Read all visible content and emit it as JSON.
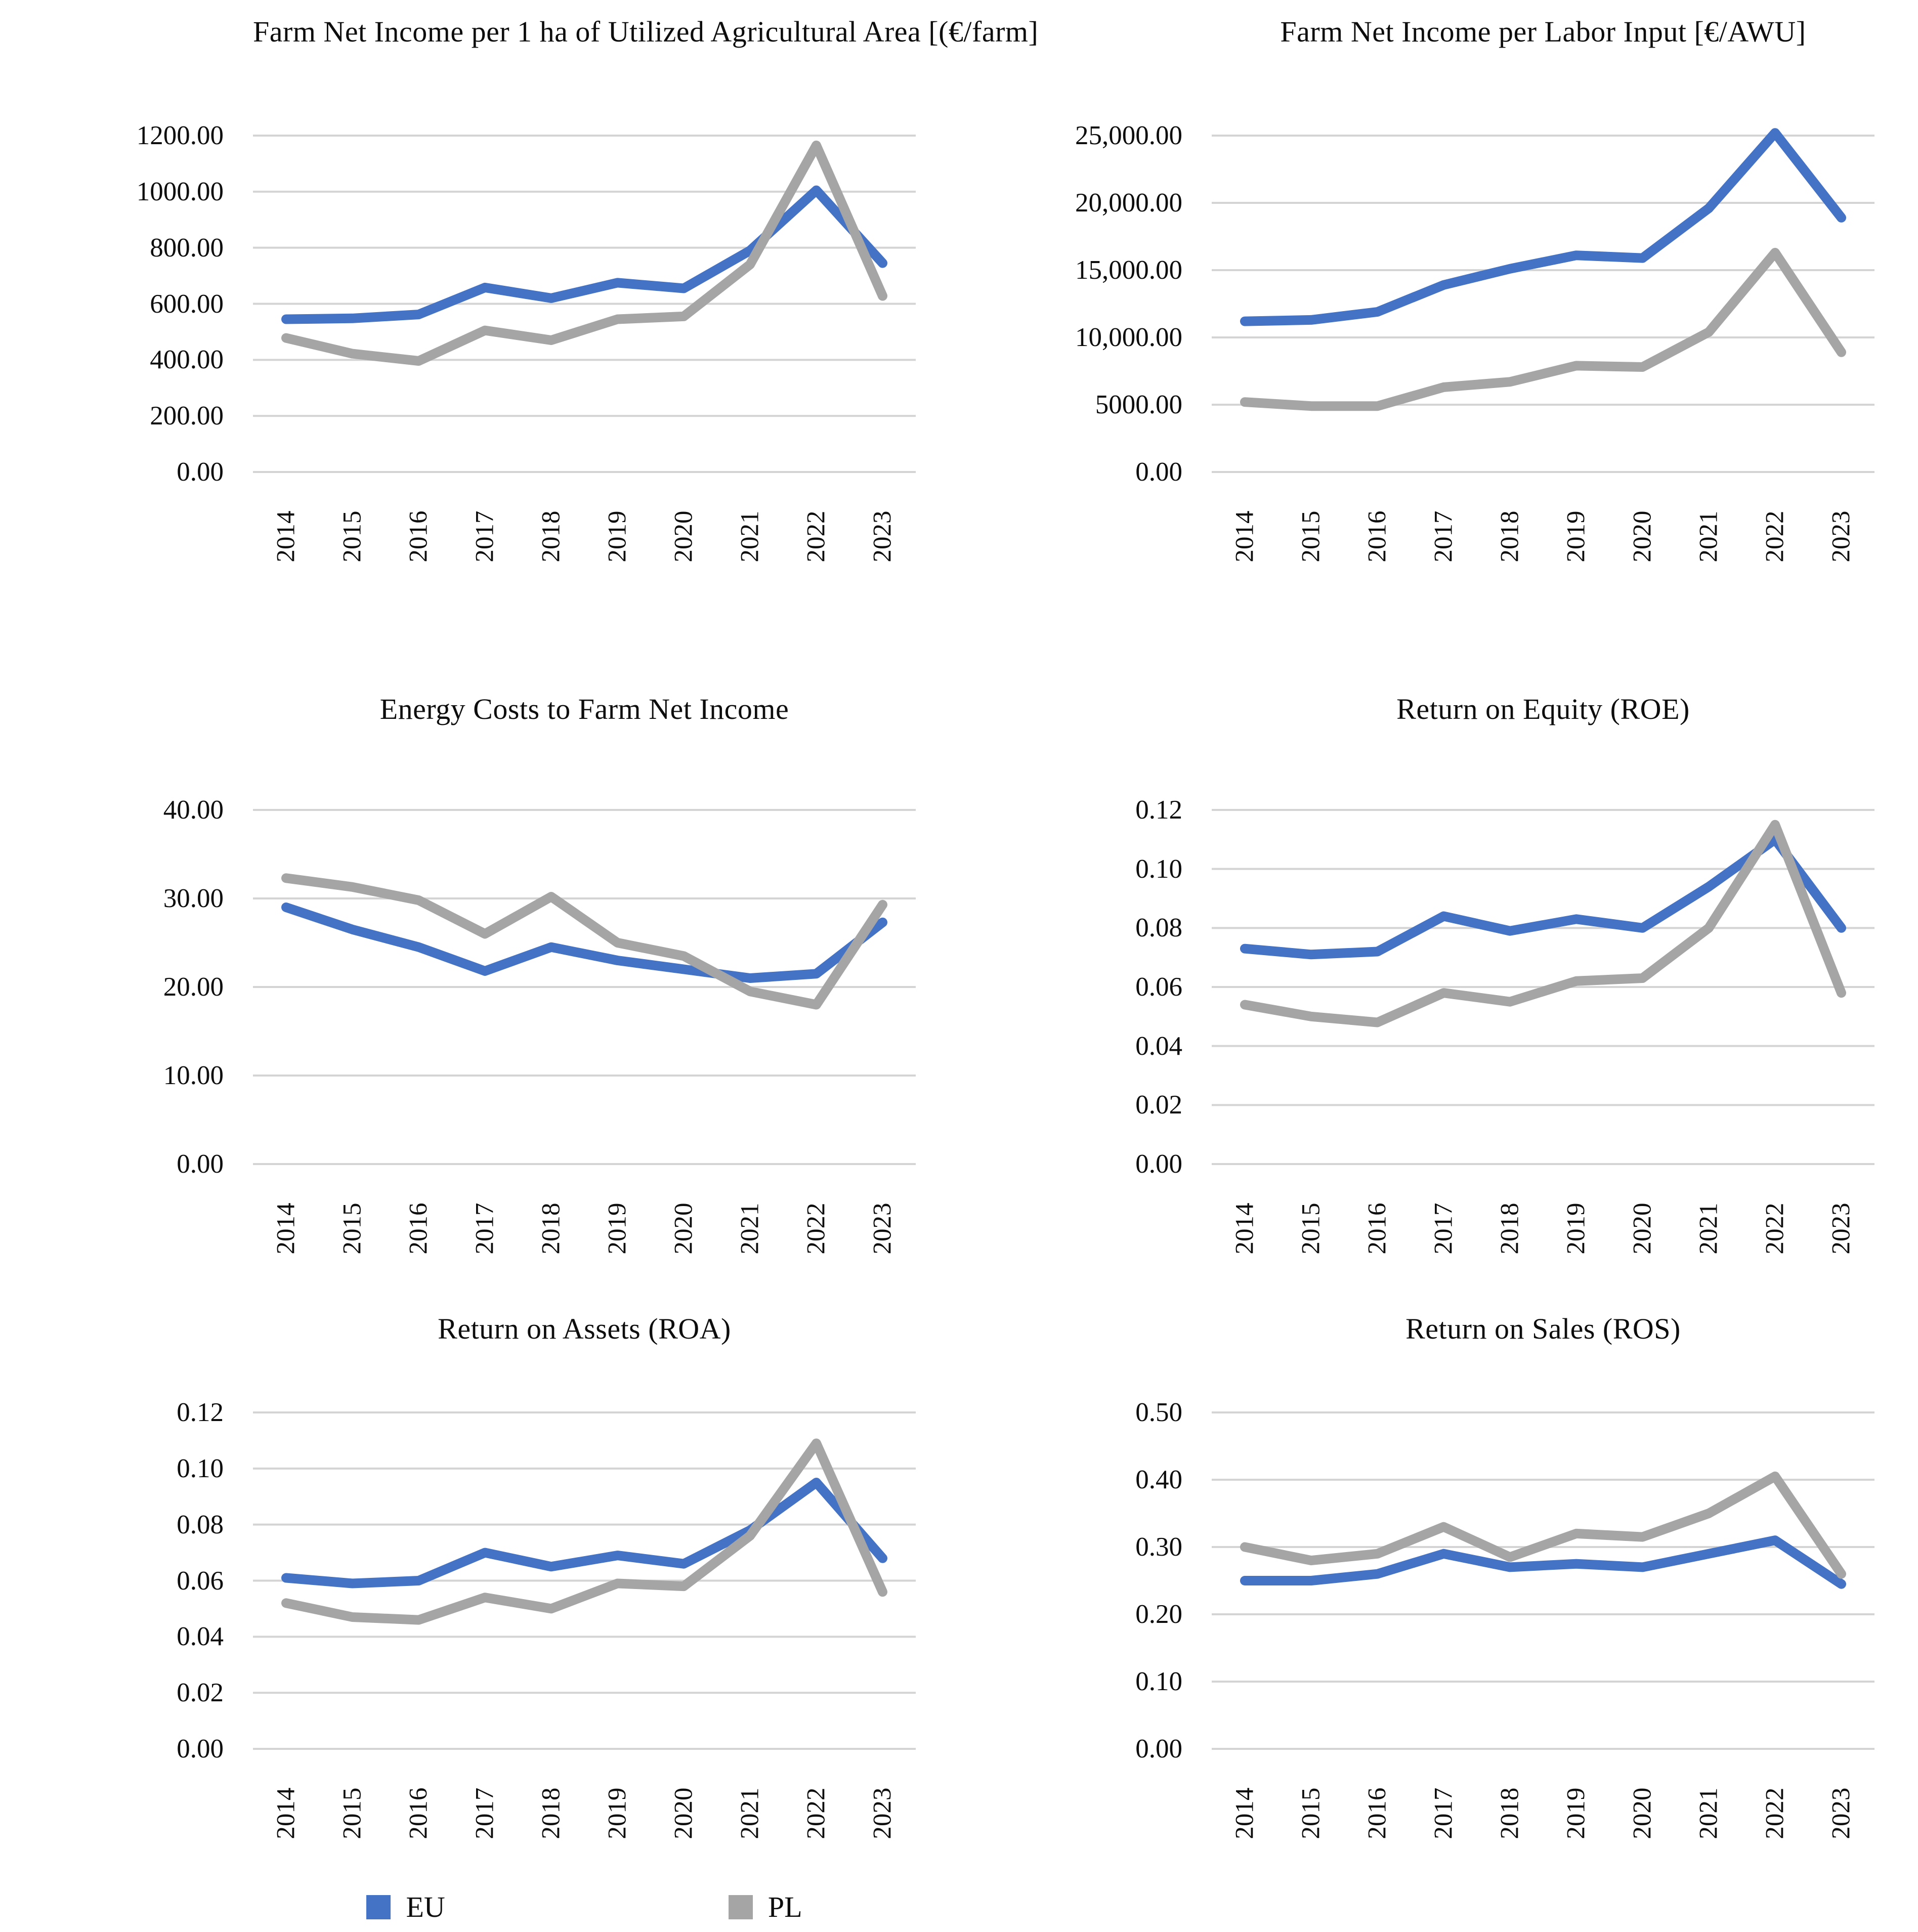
{
  "figure": {
    "background": "#ffffff",
    "text_color": "#0d0d0d",
    "gridline_color": "#d4d4d4",
    "accent_blue": "#4472C4",
    "accent_gray": "#A5A5A5"
  },
  "legend": {
    "position": "bottom-left",
    "items": [
      {
        "label": "EU",
        "color": "#4472C4"
      },
      {
        "label": "PL",
        "color": "#A5A5A5"
      }
    ]
  },
  "chart_data": [
    {
      "type": "line",
      "title": "Farm Net Income per 1 ha of Utilized Agricultural Area [(€/farm]",
      "categories": [
        "2014",
        "2015",
        "2016",
        "2017",
        "2018",
        "2019",
        "2020",
        "2021",
        "2022",
        "2023"
      ],
      "y_ticks": [
        "1200.00",
        "1000.00",
        "800.00",
        "600.00",
        "400.00",
        "200.00",
        "0.00"
      ],
      "ylim": [
        0,
        1200
      ],
      "grid": true,
      "legend_position": "none",
      "series": [
        {
          "name": "EU",
          "color": "#4472C4",
          "values": [
            545,
            548,
            562,
            658,
            620,
            675,
            655,
            790,
            1005,
            745
          ]
        },
        {
          "name": "PL",
          "color": "#A5A5A5",
          "values": [
            478,
            422,
            396,
            505,
            470,
            545,
            555,
            740,
            1165,
            628
          ]
        }
      ]
    },
    {
      "type": "line",
      "title": "Farm Net Income per Labor Input [€/AWU]",
      "categories": [
        "2014",
        "2015",
        "2016",
        "2017",
        "2018",
        "2019",
        "2020",
        "2021",
        "2022",
        "2023"
      ],
      "y_ticks": [
        "25,000.00",
        "20,000.00",
        "15,000.00",
        "10,000.00",
        "5000.00",
        "0.00"
      ],
      "ylim": [
        0,
        25000
      ],
      "grid": true,
      "legend_position": "none",
      "series": [
        {
          "name": "EU",
          "color": "#4472C4",
          "values": [
            11200,
            11300,
            11900,
            13900,
            15100,
            16100,
            15900,
            19600,
            25200,
            18900
          ]
        },
        {
          "name": "PL",
          "color": "#A5A5A5",
          "values": [
            5200,
            4900,
            4900,
            6300,
            6700,
            7900,
            7800,
            10400,
            16300,
            8900
          ]
        }
      ]
    },
    {
      "type": "line",
      "title": "Energy Costs to Farm Net Income",
      "categories": [
        "2014",
        "2015",
        "2016",
        "2017",
        "2018",
        "2019",
        "2020",
        "2021",
        "2022",
        "2023"
      ],
      "y_ticks": [
        "40.00",
        "30.00",
        "20.00",
        "10.00",
        "0.00"
      ],
      "ylim": [
        0,
        40
      ],
      "grid": true,
      "legend_position": "none",
      "series": [
        {
          "name": "EU",
          "color": "#4472C4",
          "values": [
            29.0,
            26.5,
            24.5,
            21.8,
            24.5,
            23.0,
            22.0,
            21.0,
            21.5,
            27.3
          ]
        },
        {
          "name": "PL",
          "color": "#A5A5A5",
          "values": [
            32.3,
            31.3,
            29.8,
            26.0,
            30.2,
            25.0,
            23.5,
            19.5,
            18.0,
            29.3
          ]
        }
      ]
    },
    {
      "type": "line",
      "title": "Return on Equity (ROE)",
      "categories": [
        "2014",
        "2015",
        "2016",
        "2017",
        "2018",
        "2019",
        "2020",
        "2021",
        "2022",
        "2023"
      ],
      "y_ticks": [
        "0.12",
        "0.10",
        "0.08",
        "0.06",
        "0.04",
        "0.02",
        "0.00"
      ],
      "ylim": [
        0,
        0.12
      ],
      "grid": true,
      "legend_position": "none",
      "series": [
        {
          "name": "EU",
          "color": "#4472C4",
          "values": [
            0.073,
            0.071,
            0.072,
            0.084,
            0.079,
            0.083,
            0.08,
            0.094,
            0.11,
            0.08
          ]
        },
        {
          "name": "PL",
          "color": "#A5A5A5",
          "values": [
            0.054,
            0.05,
            0.048,
            0.058,
            0.055,
            0.062,
            0.063,
            0.08,
            0.115,
            0.058
          ]
        }
      ]
    },
    {
      "type": "line",
      "title": "Return on Assets (ROA)",
      "categories": [
        "2014",
        "2015",
        "2016",
        "2017",
        "2018",
        "2019",
        "2020",
        "2021",
        "2022",
        "2023"
      ],
      "y_ticks": [
        "0.12",
        "0.10",
        "0.08",
        "0.06",
        "0.04",
        "0.02",
        "0.00"
      ],
      "ylim": [
        0,
        0.12
      ],
      "grid": true,
      "legend_position": "bottom",
      "series": [
        {
          "name": "EU",
          "color": "#4472C4",
          "values": [
            0.061,
            0.059,
            0.06,
            0.07,
            0.065,
            0.069,
            0.066,
            0.078,
            0.095,
            0.068
          ]
        },
        {
          "name": "PL",
          "color": "#A5A5A5",
          "values": [
            0.052,
            0.047,
            0.046,
            0.054,
            0.05,
            0.059,
            0.058,
            0.076,
            0.109,
            0.056
          ]
        }
      ]
    },
    {
      "type": "line",
      "title": "Return on Sales (ROS)",
      "categories": [
        "2014",
        "2015",
        "2016",
        "2017",
        "2018",
        "2019",
        "2020",
        "2021",
        "2022",
        "2023"
      ],
      "y_ticks": [
        "0.50",
        "0.40",
        "0.30",
        "0.20",
        "0.10",
        "0.00"
      ],
      "ylim": [
        0,
        0.5
      ],
      "grid": true,
      "legend_position": "none",
      "series": [
        {
          "name": "EU",
          "color": "#4472C4",
          "values": [
            0.25,
            0.25,
            0.26,
            0.29,
            0.27,
            0.275,
            0.27,
            0.29,
            0.31,
            0.245
          ]
        },
        {
          "name": "PL",
          "color": "#A5A5A5",
          "values": [
            0.3,
            0.28,
            0.29,
            0.33,
            0.285,
            0.32,
            0.315,
            0.35,
            0.405,
            0.26
          ]
        }
      ]
    }
  ]
}
